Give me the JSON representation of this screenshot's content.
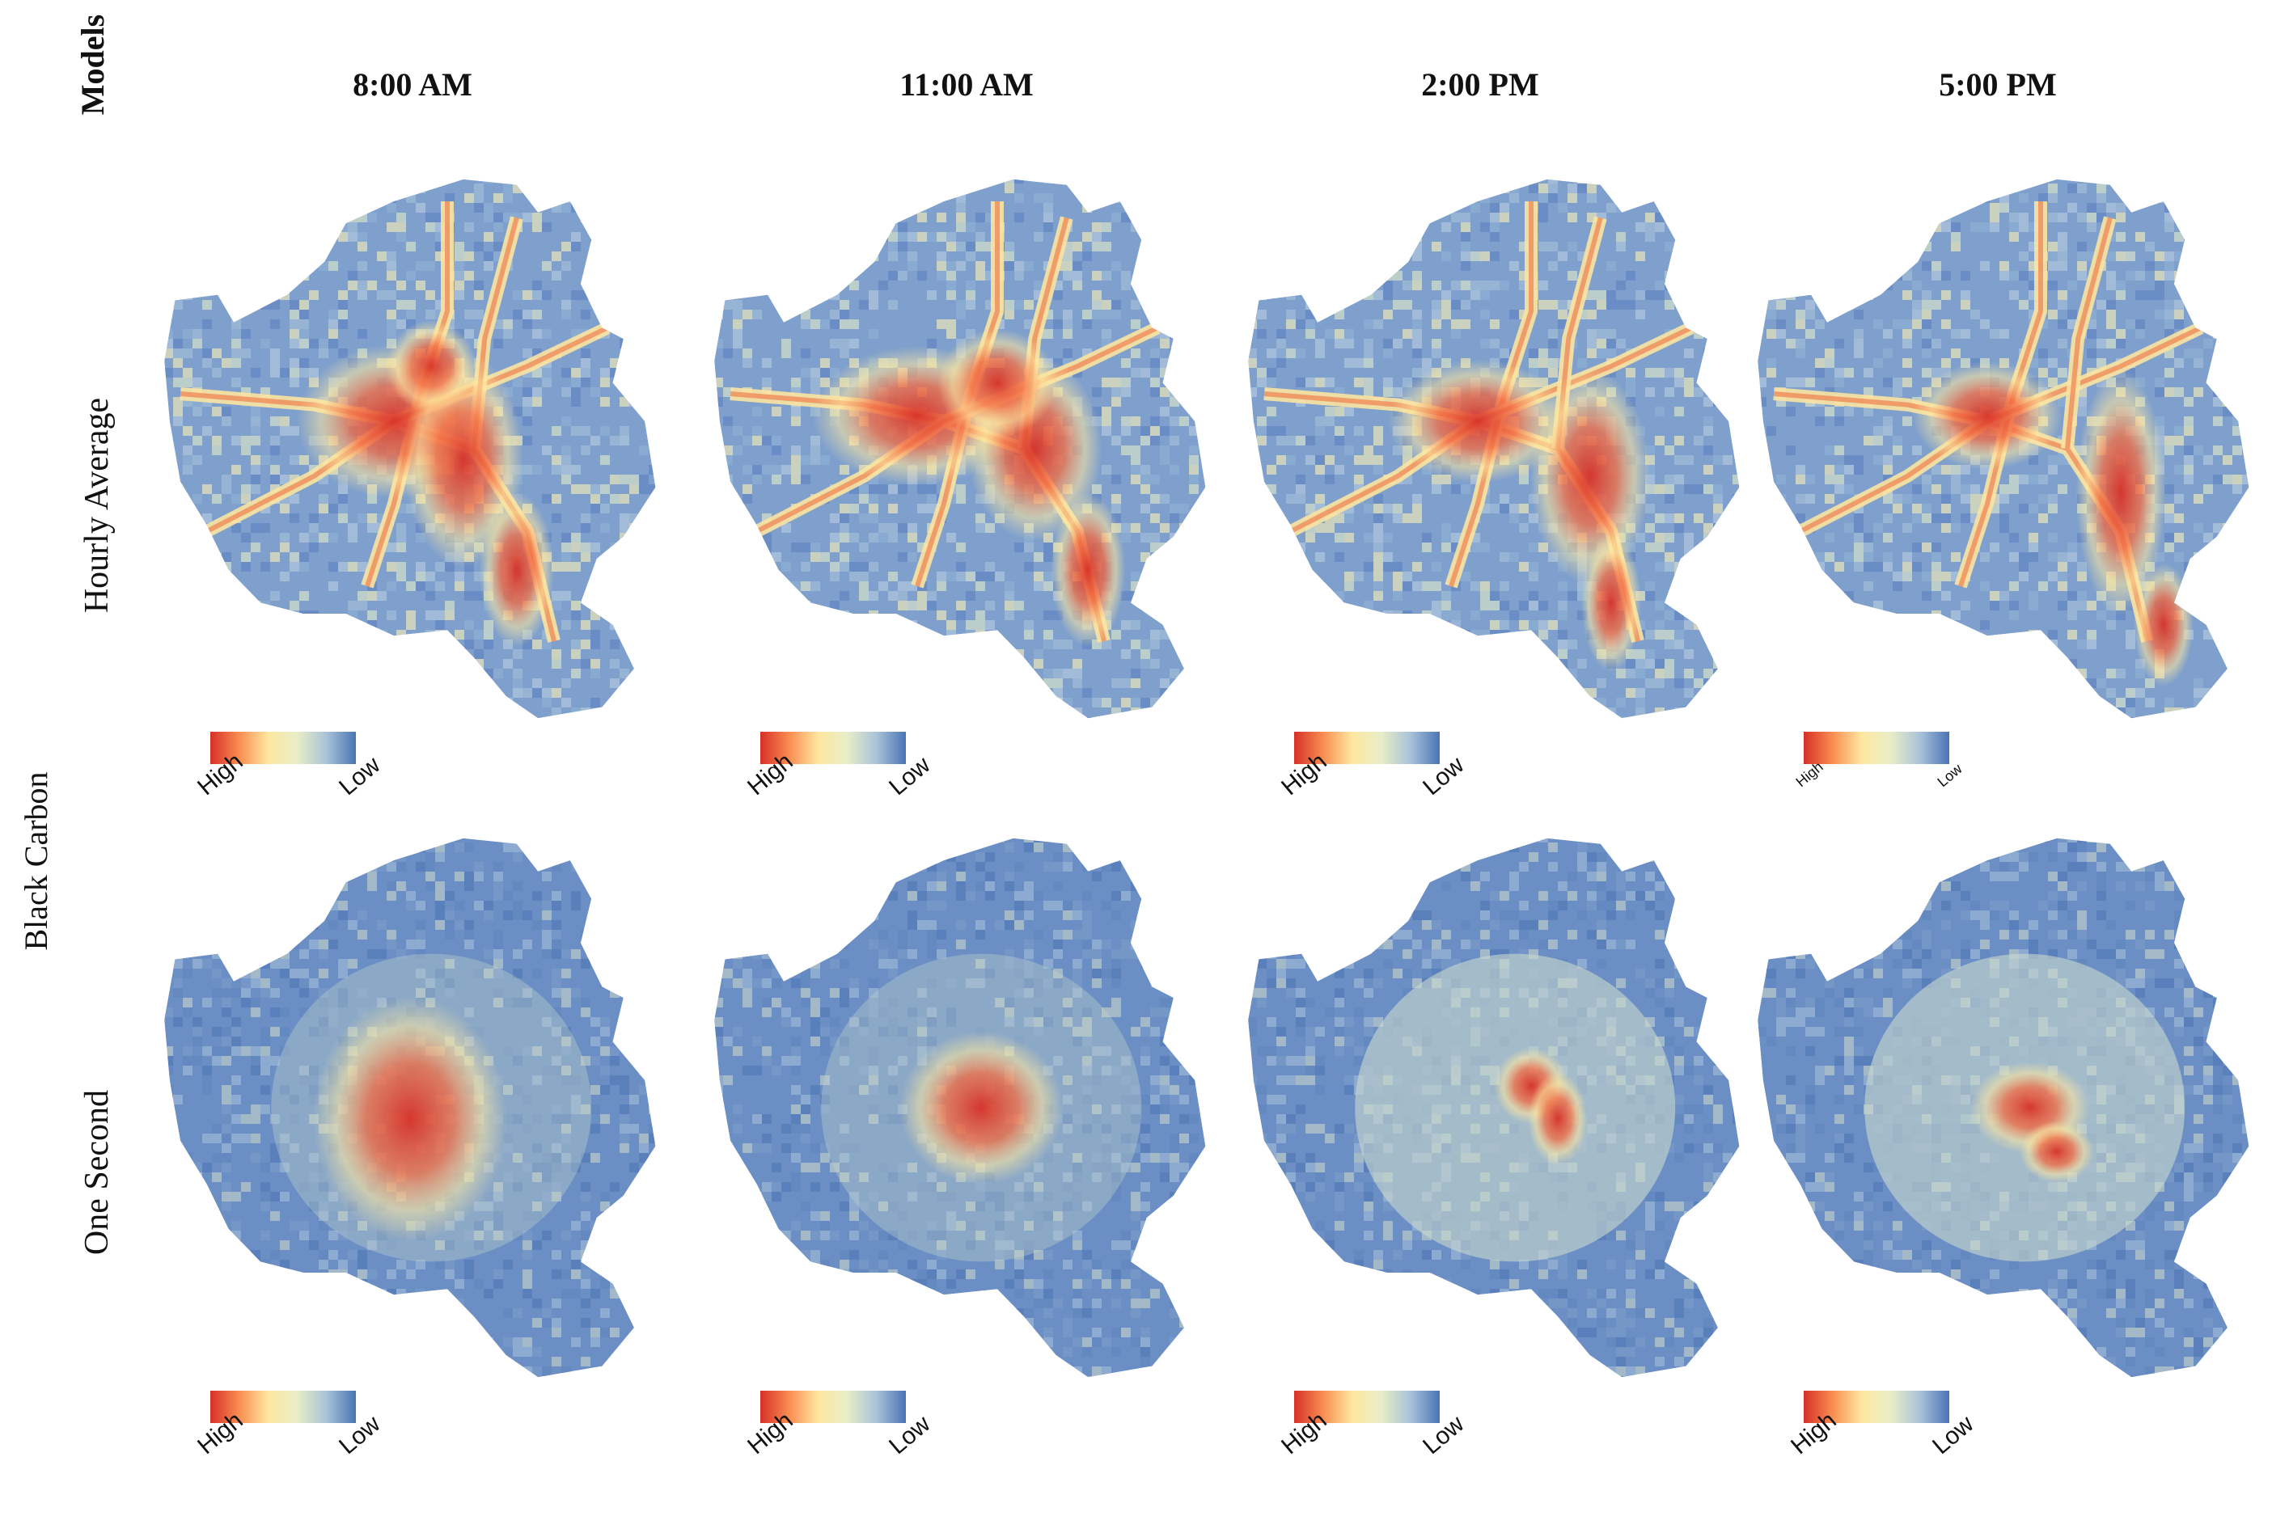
{
  "header": {
    "models_label": "Models",
    "columns": [
      "8:00 AM",
      "11:00 AM",
      "2:00 PM",
      "5:00 PM"
    ]
  },
  "pollutant_label": "Black Carbon",
  "rows": [
    {
      "label": "Hourly Average",
      "panels": [
        {
          "time": "8:00 AM",
          "legend_high": "High",
          "legend_low": "Low"
        },
        {
          "time": "11:00 AM",
          "legend_high": "High",
          "legend_low": "Low"
        },
        {
          "time": "2:00 PM",
          "legend_high": "High",
          "legend_low": "Low"
        },
        {
          "time": "5:00 PM",
          "legend_high": "High",
          "legend_low": "Low"
        }
      ]
    },
    {
      "label": "One Second",
      "panels": [
        {
          "time": "8:00 AM",
          "legend_high": "High",
          "legend_low": "Low"
        },
        {
          "time": "11:00 AM",
          "legend_high": "High",
          "legend_low": "Low"
        },
        {
          "time": "2:00 PM",
          "legend_high": "High",
          "legend_low": "Low"
        },
        {
          "time": "5:00 PM",
          "legend_high": "High",
          "legend_low": "Low"
        }
      ]
    }
  ],
  "color_scale": {
    "high": "#d73027",
    "mid": "#fee8a0",
    "low": "#4a74b4",
    "background_low": "#6b8fc4"
  }
}
